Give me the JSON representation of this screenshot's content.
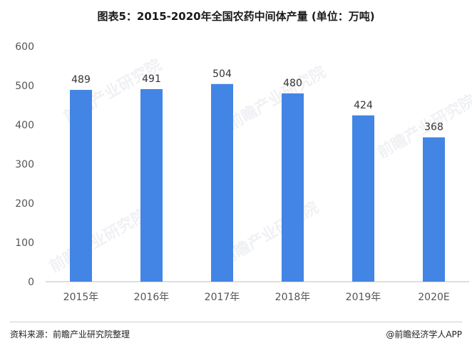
{
  "title": "图表5：2015-2020年全国农药中间体产量 (单位：万吨)",
  "source": "资料来源：前瞻产业研究院整理",
  "brand": "@前瞻经济学人APP",
  "watermark": "前瞻产业研究院",
  "colors": {
    "bar": "#4285e4",
    "axis": "#bfbfbf",
    "tick_text": "#555555",
    "label_text": "#333333"
  },
  "chart_data": {
    "type": "bar",
    "title": "图表5：2015-2020年全国农药中间体产量 (单位：万吨)",
    "xlabel": "",
    "ylabel": "",
    "categories": [
      "2015年",
      "2016年",
      "2017年",
      "2018年",
      "2019年",
      "2020E"
    ],
    "values": [
      489,
      491,
      504,
      480,
      424,
      368
    ],
    "data_labels": [
      "489",
      "491",
      "504",
      "480",
      "424",
      "368"
    ],
    "ylim": [
      0,
      600
    ],
    "yticks": [
      "0",
      "100",
      "200",
      "300",
      "400",
      "500",
      "600"
    ],
    "grid": false,
    "legend": "none"
  }
}
